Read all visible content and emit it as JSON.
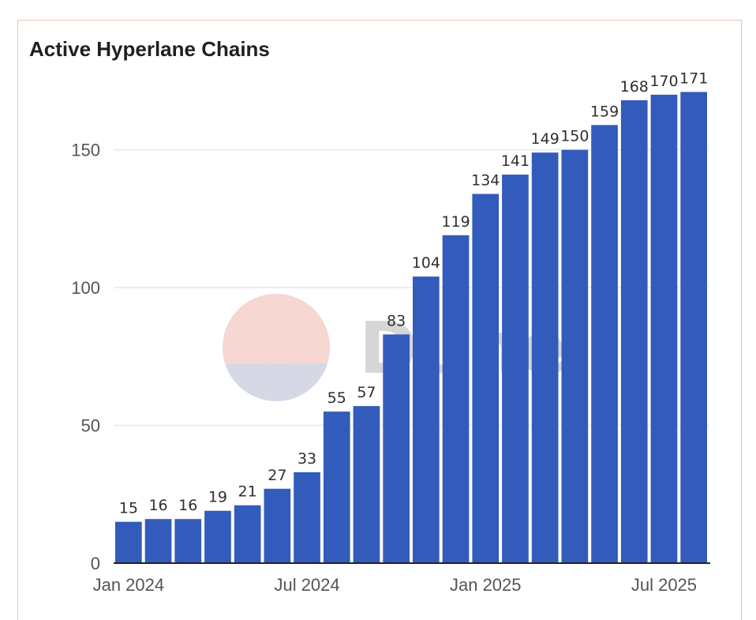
{
  "chart_data": {
    "type": "bar",
    "title": "Active Hyperlane Chains",
    "xlabel": "",
    "ylabel": "",
    "categories": [
      "Jan 2024",
      "Feb 2024",
      "Mar 2024",
      "Apr 2024",
      "May 2024",
      "Jun 2024",
      "Jul 2024",
      "Aug 2024",
      "Sep 2024",
      "Oct 2024",
      "Nov 2024",
      "Dec 2024",
      "Jan 2025",
      "Feb 2025",
      "Mar 2025",
      "Apr 2025",
      "May 2025",
      "Jun 2025",
      "Jul 2025",
      "Aug 2025"
    ],
    "values": [
      15,
      16,
      16,
      19,
      21,
      27,
      33,
      55,
      57,
      83,
      104,
      119,
      134,
      141,
      149,
      150,
      159,
      168,
      170,
      171
    ],
    "x_tick_labels": [
      {
        "label": "Jan 2024",
        "index": 0
      },
      {
        "label": "Jul 2024",
        "index": 6
      },
      {
        "label": "Jan 2025",
        "index": 12
      },
      {
        "label": "Jul 2025",
        "index": 18
      }
    ],
    "y_ticks": [
      0,
      50,
      100,
      150
    ],
    "ylim": [
      0,
      178
    ],
    "grid": true,
    "bar_color": "#335bbb",
    "gridline_color": "#e6e8ef"
  },
  "watermark": {
    "text": "Dune",
    "color_top": "#f6d6d0",
    "color_bottom": "#d6d8e6"
  }
}
